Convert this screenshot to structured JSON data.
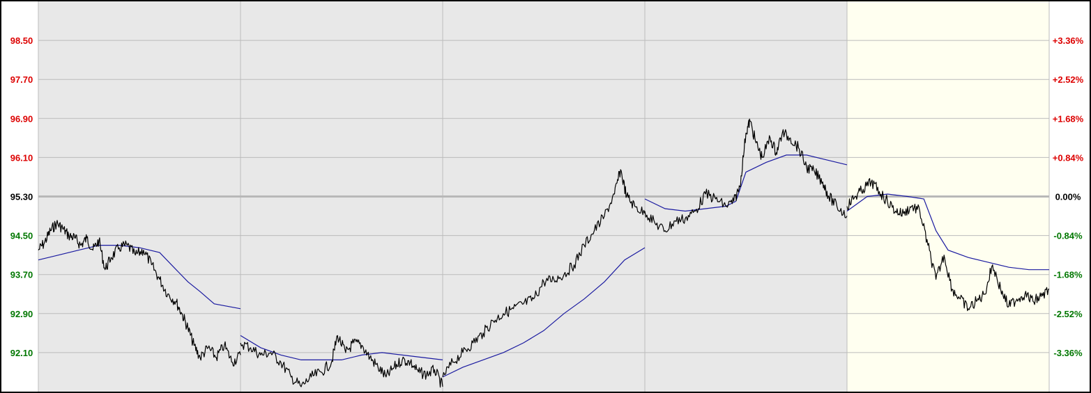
{
  "chart_data": {
    "type": "line",
    "title": "",
    "xlabel": "",
    "ylabel": "",
    "reference_price": 95.3,
    "ylim": [
      91.3,
      99.3
    ],
    "grid": true,
    "legend": "none",
    "day_count": 5,
    "highlighted_day": 5,
    "y_ticks": [
      {
        "value": 98.5,
        "label": "98.50",
        "pct_label": "+3.36%",
        "side": "up"
      },
      {
        "value": 97.7,
        "label": "97.70",
        "pct_label": "+2.52%",
        "side": "up"
      },
      {
        "value": 96.9,
        "label": "96.90",
        "pct_label": "+1.68%",
        "side": "up"
      },
      {
        "value": 96.1,
        "label": "96.10",
        "pct_label": "+0.84%",
        "side": "up"
      },
      {
        "value": 95.3,
        "label": "95.30",
        "pct_label": "0.00%",
        "side": "flat"
      },
      {
        "value": 94.5,
        "label": "94.50",
        "pct_label": "-0.84%",
        "side": "down"
      },
      {
        "value": 93.7,
        "label": "93.70",
        "pct_label": "-1.68%",
        "side": "down"
      },
      {
        "value": 92.9,
        "label": "92.90",
        "pct_label": "-2.52%",
        "side": "down"
      },
      {
        "value": 92.1,
        "label": "92.10",
        "pct_label": "-3.36%",
        "side": "down"
      }
    ],
    "series": [
      {
        "segments": [
          {
            "day": 1,
            "points": [
              [
                0,
                94.2
              ],
              [
                0.03,
                94.35
              ],
              [
                0.06,
                94.6
              ],
              [
                0.09,
                94.75
              ],
              [
                0.12,
                94.65
              ],
              [
                0.15,
                94.5
              ],
              [
                0.18,
                94.45
              ],
              [
                0.21,
                94.3
              ],
              [
                0.24,
                94.45
              ],
              [
                0.27,
                94.2
              ],
              [
                0.3,
                94.4
              ],
              [
                0.33,
                93.8
              ],
              [
                0.36,
                94.05
              ],
              [
                0.4,
                94.25
              ],
              [
                0.44,
                94.3
              ],
              [
                0.48,
                94.1
              ],
              [
                0.52,
                94.2
              ],
              [
                0.56,
                93.9
              ],
              [
                0.6,
                93.6
              ],
              [
                0.64,
                93.3
              ],
              [
                0.68,
                93.15
              ],
              [
                0.71,
                92.9
              ],
              [
                0.74,
                92.6
              ],
              [
                0.77,
                92.25
              ],
              [
                0.8,
                92.0
              ],
              [
                0.84,
                92.2
              ],
              [
                0.88,
                92.0
              ],
              [
                0.92,
                92.25
              ],
              [
                0.96,
                91.9
              ],
              [
                1.0,
                92.05
              ]
            ]
          },
          {
            "day": 2,
            "points": [
              [
                0,
                92.3
              ],
              [
                0.05,
                92.2
              ],
              [
                0.1,
                92.05
              ],
              [
                0.15,
                92.1
              ],
              [
                0.2,
                91.9
              ],
              [
                0.25,
                91.6
              ],
              [
                0.3,
                91.4
              ],
              [
                0.35,
                91.6
              ],
              [
                0.4,
                91.7
              ],
              [
                0.45,
                91.9
              ],
              [
                0.48,
                92.45
              ],
              [
                0.52,
                92.1
              ],
              [
                0.56,
                92.3
              ],
              [
                0.6,
                92.25
              ],
              [
                0.64,
                92.0
              ],
              [
                0.68,
                91.8
              ],
              [
                0.72,
                91.6
              ],
              [
                0.76,
                91.8
              ],
              [
                0.8,
                91.95
              ],
              [
                0.84,
                91.9
              ],
              [
                0.88,
                91.7
              ],
              [
                0.92,
                91.65
              ],
              [
                0.96,
                91.75
              ],
              [
                1.0,
                91.4
              ]
            ]
          },
          {
            "day": 3,
            "points": [
              [
                0,
                91.6
              ],
              [
                0.05,
                91.9
              ],
              [
                0.1,
                92.1
              ],
              [
                0.15,
                92.3
              ],
              [
                0.2,
                92.5
              ],
              [
                0.25,
                92.75
              ],
              [
                0.3,
                92.9
              ],
              [
                0.35,
                93.0
              ],
              [
                0.4,
                93.1
              ],
              [
                0.45,
                93.2
              ],
              [
                0.5,
                93.55
              ],
              [
                0.55,
                93.6
              ],
              [
                0.6,
                93.7
              ],
              [
                0.65,
                93.9
              ],
              [
                0.7,
                94.3
              ],
              [
                0.75,
                94.6
              ],
              [
                0.8,
                94.9
              ],
              [
                0.85,
                95.35
              ],
              [
                0.88,
                95.85
              ],
              [
                0.91,
                95.3
              ],
              [
                0.95,
                95.1
              ],
              [
                1.0,
                94.95
              ]
            ]
          },
          {
            "day": 4,
            "points": [
              [
                0,
                95.0
              ],
              [
                0.05,
                94.75
              ],
              [
                0.1,
                94.6
              ],
              [
                0.15,
                94.8
              ],
              [
                0.2,
                94.85
              ],
              [
                0.25,
                95.0
              ],
              [
                0.3,
                95.35
              ],
              [
                0.35,
                95.25
              ],
              [
                0.4,
                95.1
              ],
              [
                0.44,
                95.2
              ],
              [
                0.47,
                95.5
              ],
              [
                0.5,
                96.6
              ],
              [
                0.52,
                96.85
              ],
              [
                0.55,
                96.4
              ],
              [
                0.58,
                96.1
              ],
              [
                0.62,
                96.5
              ],
              [
                0.65,
                96.2
              ],
              [
                0.68,
                96.6
              ],
              [
                0.72,
                96.5
              ],
              [
                0.76,
                96.3
              ],
              [
                0.8,
                95.9
              ],
              [
                0.84,
                95.8
              ],
              [
                0.88,
                95.6
              ],
              [
                0.91,
                95.3
              ],
              [
                0.95,
                95.1
              ],
              [
                1.0,
                94.9
              ]
            ]
          },
          {
            "day": 5,
            "points": [
              [
                0,
                95.1
              ],
              [
                0.04,
                95.3
              ],
              [
                0.08,
                95.45
              ],
              [
                0.12,
                95.6
              ],
              [
                0.16,
                95.4
              ],
              [
                0.2,
                95.2
              ],
              [
                0.24,
                95.0
              ],
              [
                0.28,
                94.95
              ],
              [
                0.32,
                95.1
              ],
              [
                0.36,
                95.0
              ],
              [
                0.4,
                94.3
              ],
              [
                0.44,
                93.6
              ],
              [
                0.48,
                94.1
              ],
              [
                0.52,
                93.4
              ],
              [
                0.56,
                93.2
              ],
              [
                0.6,
                93.0
              ],
              [
                0.64,
                93.15
              ],
              [
                0.68,
                93.3
              ],
              [
                0.72,
                93.9
              ],
              [
                0.76,
                93.4
              ],
              [
                0.8,
                93.05
              ],
              [
                0.84,
                93.2
              ],
              [
                0.88,
                93.3
              ],
              [
                0.92,
                93.15
              ],
              [
                0.96,
                93.25
              ],
              [
                1.0,
                93.4
              ]
            ]
          }
        ]
      },
      {
        "segments": [
          {
            "day": 1,
            "points": [
              [
                0,
                94.0
              ],
              [
                0.1,
                94.1
              ],
              [
                0.2,
                94.2
              ],
              [
                0.3,
                94.3
              ],
              [
                0.4,
                94.3
              ],
              [
                0.5,
                94.25
              ],
              [
                0.6,
                94.15
              ],
              [
                0.67,
                93.85
              ],
              [
                0.74,
                93.55
              ],
              [
                0.8,
                93.35
              ],
              [
                0.87,
                93.1
              ],
              [
                1.0,
                93.0
              ]
            ]
          },
          {
            "day": 2,
            "points": [
              [
                0,
                92.45
              ],
              [
                0.1,
                92.2
              ],
              [
                0.2,
                92.05
              ],
              [
                0.3,
                91.95
              ],
              [
                0.4,
                91.95
              ],
              [
                0.5,
                91.95
              ],
              [
                0.6,
                92.05
              ],
              [
                0.7,
                92.1
              ],
              [
                0.8,
                92.05
              ],
              [
                0.9,
                92.0
              ],
              [
                1.0,
                91.95
              ]
            ]
          },
          {
            "day": 3,
            "points": [
              [
                0,
                91.6
              ],
              [
                0.1,
                91.8
              ],
              [
                0.2,
                91.95
              ],
              [
                0.3,
                92.1
              ],
              [
                0.4,
                92.3
              ],
              [
                0.5,
                92.55
              ],
              [
                0.6,
                92.9
              ],
              [
                0.7,
                93.2
              ],
              [
                0.8,
                93.55
              ],
              [
                0.9,
                94.0
              ],
              [
                1.0,
                94.25
              ]
            ]
          },
          {
            "day": 4,
            "points": [
              [
                0,
                95.25
              ],
              [
                0.1,
                95.05
              ],
              [
                0.2,
                95.0
              ],
              [
                0.3,
                95.05
              ],
              [
                0.4,
                95.1
              ],
              [
                0.45,
                95.2
              ],
              [
                0.5,
                95.8
              ],
              [
                0.6,
                96.0
              ],
              [
                0.7,
                96.15
              ],
              [
                0.8,
                96.15
              ],
              [
                0.9,
                96.05
              ],
              [
                1.0,
                95.95
              ]
            ]
          },
          {
            "day": 5,
            "points": [
              [
                0,
                95.0
              ],
              [
                0.1,
                95.3
              ],
              [
                0.2,
                95.35
              ],
              [
                0.3,
                95.3
              ],
              [
                0.38,
                95.25
              ],
              [
                0.44,
                94.6
              ],
              [
                0.5,
                94.2
              ],
              [
                0.6,
                94.05
              ],
              [
                0.7,
                93.95
              ],
              [
                0.8,
                93.85
              ],
              [
                0.9,
                93.8
              ],
              [
                1.0,
                93.8
              ]
            ]
          }
        ]
      }
    ],
    "colors": {
      "price_line": "#000000",
      "average_line": "#1a1aa0",
      "background_past": "#e8e8e8",
      "background_current": "#fffff0",
      "grid": "#bbbbbb",
      "reference_line": "#b8b8b8",
      "label_up": "#dd0000",
      "label_down": "#007700",
      "label_flat": "#000000",
      "frame": "#000000"
    }
  }
}
